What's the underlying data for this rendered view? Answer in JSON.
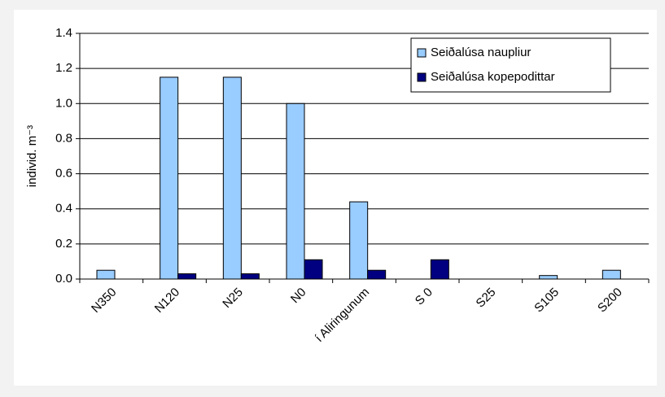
{
  "chart_data": {
    "type": "bar",
    "y_label": "individ. m⁻³",
    "categories": [
      "N350",
      "N120",
      "N25",
      "N0",
      "í Aliringunum",
      "S 0",
      "S25",
      "S105",
      "S200"
    ],
    "series": [
      {
        "name": "Seiðalúsa naupliur",
        "color": "#99ccff",
        "values": [
          0.05,
          1.15,
          1.15,
          1.0,
          0.44,
          0,
          0,
          0.02,
          0.05
        ]
      },
      {
        "name": "Seiðalúsa kopepodittar",
        "color": "#000080",
        "values": [
          0,
          0.03,
          0.03,
          0.11,
          0.05,
          0.11,
          0,
          0,
          0
        ]
      }
    ],
    "ylim": [
      0,
      1.4
    ],
    "yticks": [
      {
        "value": 0,
        "label": "0.0"
      },
      0.2,
      0.4,
      0.6,
      0.8,
      {
        "value": 1,
        "label": "1.0"
      },
      1.2,
      1.4
    ],
    "grid": true,
    "legend": "top-right"
  }
}
